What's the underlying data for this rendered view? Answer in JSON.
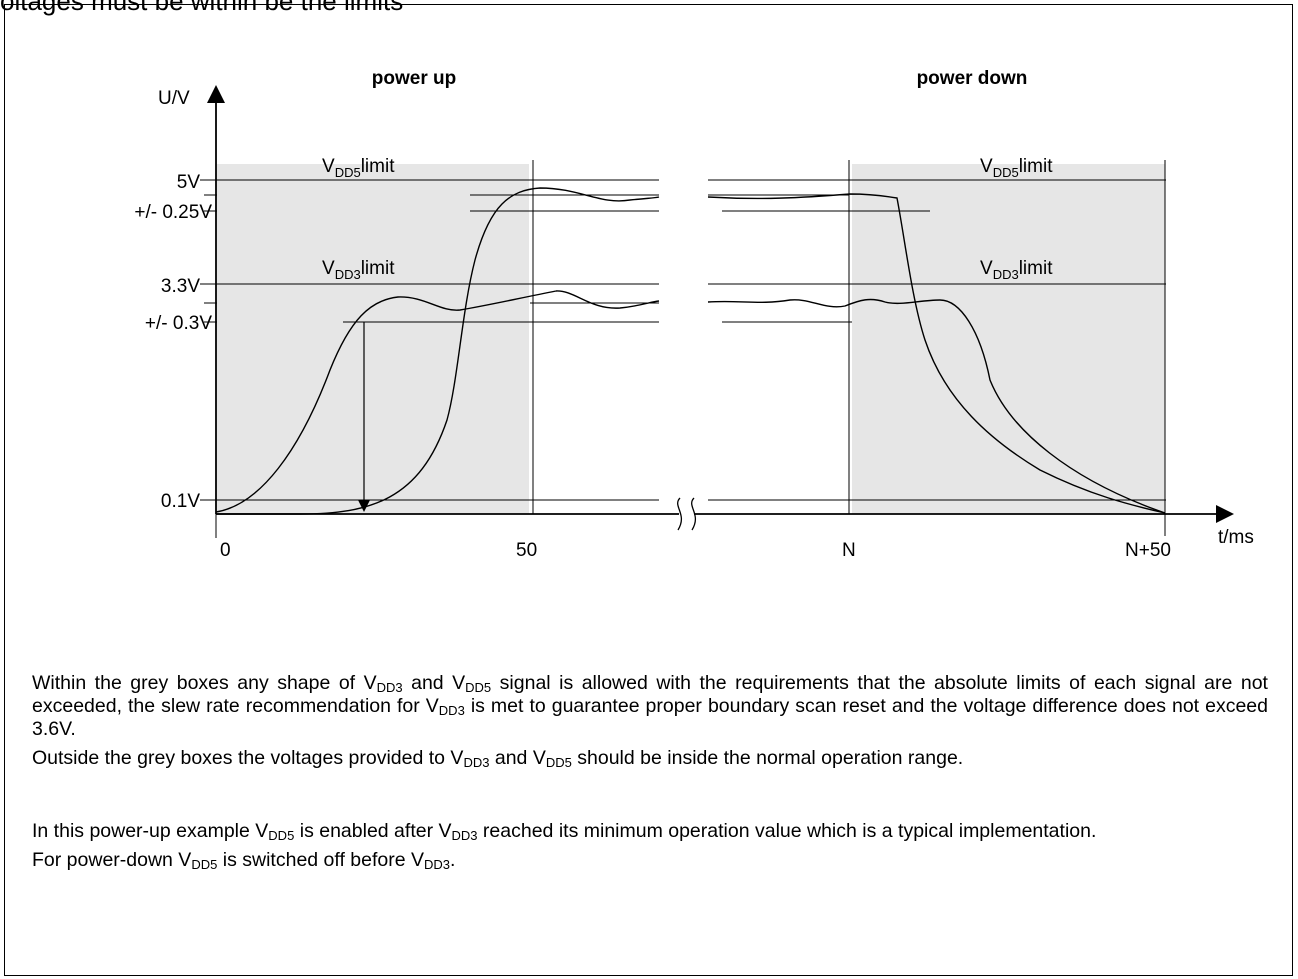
{
  "header_fragment": "oltages must be within be the limits",
  "diagram": {
    "title_power_up": "power up",
    "title_power_down": "power down",
    "y_axis_label": "U/V",
    "x_axis_label": "t/ms",
    "y_ticks": [
      "5V",
      "+/- 0.25V",
      "3.3V",
      "+/- 0.3V",
      "0.1V"
    ],
    "x_ticks": [
      "0",
      "50",
      "N",
      "N+50"
    ],
    "limit_label_vdd5": {
      "main": "V",
      "sub": "DD5",
      "suffix": "limit"
    },
    "limit_label_vdd3": {
      "main": "V",
      "sub": "DD3",
      "suffix": "limit"
    },
    "grey_box_color": "#e6e6e6"
  },
  "text": {
    "p1": [
      {
        "t": "Within the grey boxes any shape of V"
      },
      {
        "s": "DD3"
      },
      {
        "t": " and V"
      },
      {
        "s": "DD5"
      },
      {
        "t": " signal is allowed with the requirements that the absolute limits of each signal are not exceeded, the slew rate recommendation for V"
      },
      {
        "s": "DD3"
      },
      {
        "t": " is met to guarantee proper boundary scan reset and the voltage difference does not exceed 3.6V."
      }
    ],
    "p2": [
      {
        "t": "Outside the grey boxes the voltages provided to V"
      },
      {
        "s": "DD3"
      },
      {
        "t": " and V"
      },
      {
        "s": "DD5"
      },
      {
        "t": " should be inside the normal operation range."
      }
    ],
    "p3": [
      {
        "t": "In this power-up example V"
      },
      {
        "s": "DD5"
      },
      {
        "t": " is enabled after V"
      },
      {
        "s": "DD3"
      },
      {
        "t": " reached its minimum operation value which is a typical implementation."
      }
    ],
    "p4": [
      {
        "t": "For power-down V"
      },
      {
        "s": "DD5"
      },
      {
        "t": " is switched off before V"
      },
      {
        "s": "DD3"
      },
      {
        "t": "."
      }
    ]
  }
}
